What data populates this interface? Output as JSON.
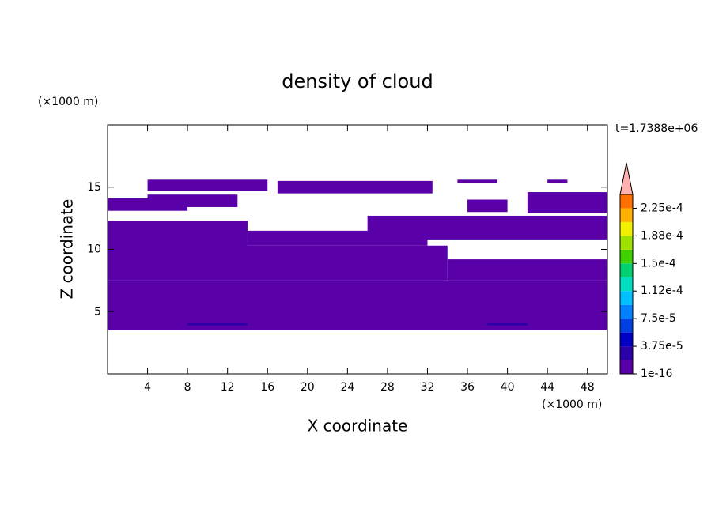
{
  "chart_data": {
    "type": "contour",
    "title": "density of cloud",
    "x_label": "X coordinate",
    "y_label": "Z coordinate",
    "x_unit": "(×1000 m)",
    "y_unit": "(×1000 m)",
    "time_label": "t=1.7388e+06",
    "xlim": [
      0,
      50
    ],
    "ylim": [
      0,
      20
    ],
    "xticks": [
      4,
      8,
      12,
      16,
      20,
      24,
      28,
      32,
      36,
      40,
      44,
      48
    ],
    "yticks": [
      5,
      10,
      15
    ],
    "colorbar": {
      "clim": [
        1e-16,
        0.00024375
      ],
      "colors": [
        "#5a00a8",
        "#2a00a8",
        "#0000c4",
        "#0040e0",
        "#0080ff",
        "#00c0ff",
        "#00e0c0",
        "#00d070",
        "#40d000",
        "#a0e000",
        "#f0f000",
        "#ffb000",
        "#ff7000",
        "#ff2000"
      ],
      "extend_color": "#ffb0b0",
      "ticks": [
        {
          "value": 1e-16,
          "label": "1e-16"
        },
        {
          "value": 3.75e-05,
          "label": "3.75e-5"
        },
        {
          "value": 7.5e-05,
          "label": "7.5e-5"
        },
        {
          "value": 0.0001125,
          "label": "1.12e-4"
        },
        {
          "value": 0.00015,
          "label": "1.5e-4"
        },
        {
          "value": 0.0001875,
          "label": "1.88e-4"
        },
        {
          "value": 0.000225,
          "label": "2.25e-4"
        }
      ]
    },
    "regions": [
      {
        "x": [
          0,
          50
        ],
        "z": [
          3.5,
          7.5
        ],
        "value": 1e-16
      },
      {
        "x": [
          0,
          34
        ],
        "z": [
          7.5,
          10.3
        ],
        "value": 1e-16
      },
      {
        "x": [
          34,
          50
        ],
        "z": [
          7.5,
          9.2
        ],
        "value": 1e-16
      },
      {
        "x": [
          14,
          32
        ],
        "z": [
          10.3,
          11.5
        ],
        "value": 1e-16
      },
      {
        "x": [
          0,
          14
        ],
        "z": [
          10,
          12.3
        ],
        "value": 1e-16
      },
      {
        "x": [
          26,
          50
        ],
        "z": [
          10.8,
          12.7
        ],
        "value": 1e-16
      },
      {
        "x": [
          0,
          8
        ],
        "z": [
          13.1,
          14.1
        ],
        "value": 1e-16
      },
      {
        "x": [
          4,
          13
        ],
        "z": [
          13.4,
          14.4
        ],
        "value": 1e-16
      },
      {
        "x": [
          4,
          16
        ],
        "z": [
          14.7,
          15.6
        ],
        "value": 1e-16
      },
      {
        "x": [
          17,
          32.5
        ],
        "z": [
          14.5,
          15.5
        ],
        "value": 1e-16
      },
      {
        "x": [
          42,
          50
        ],
        "z": [
          12.9,
          14.6
        ],
        "value": 1e-16
      },
      {
        "x": [
          36,
          40
        ],
        "z": [
          13,
          14
        ],
        "value": 1e-16
      },
      {
        "x": [
          35,
          39
        ],
        "z": [
          15.3,
          15.6
        ],
        "value": 1e-16
      },
      {
        "x": [
          44,
          46
        ],
        "z": [
          15.3,
          15.6
        ],
        "value": 1e-16
      },
      {
        "x": [
          8,
          14
        ],
        "z": [
          3.9,
          4.1
        ],
        "value": 2e-05
      },
      {
        "x": [
          38,
          42
        ],
        "z": [
          3.9,
          4.1
        ],
        "value": 2e-05
      }
    ]
  }
}
